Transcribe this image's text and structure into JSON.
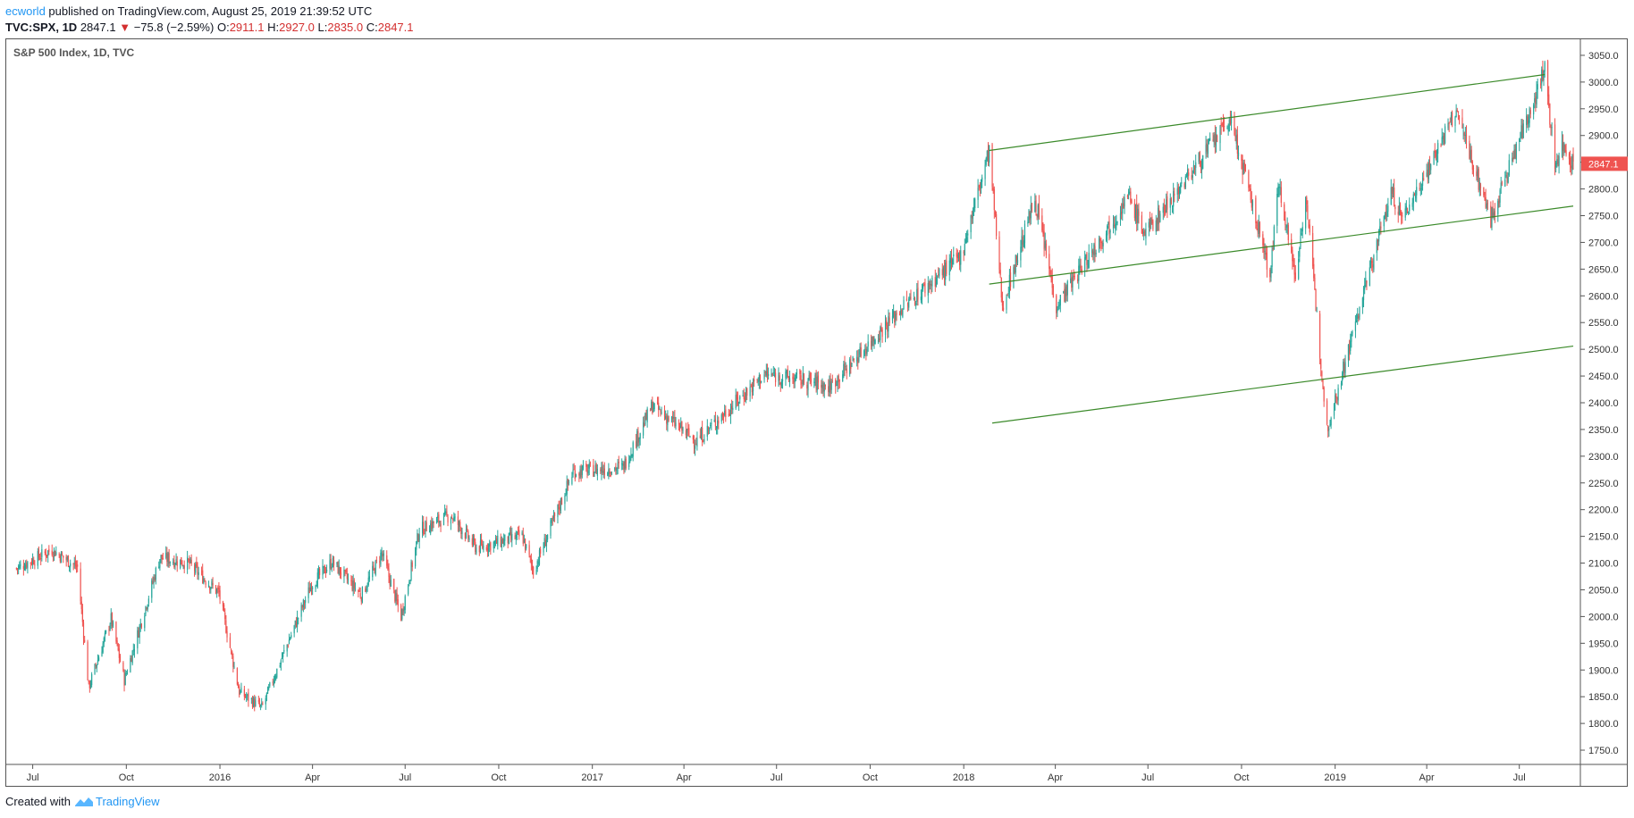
{
  "header": {
    "author": "ecworld",
    "published_text": " published on TradingView.com, August 25, 2019 21:39:52 UTC",
    "symbol": "TVC:SPX, 1D",
    "last": "2847.1",
    "change": "−75.8 (−2.59%)",
    "o_label": "O:",
    "o_value": "2911.1",
    "h_label": "H:",
    "h_value": "2927.0",
    "l_label": "L:",
    "l_value": "2835.0",
    "c_label": "C:",
    "c_value": "2847.1"
  },
  "footer": {
    "created_with": "Created with",
    "brand": "TradingView"
  },
  "colors": {
    "up": "#26a69a",
    "down": "#ef5350",
    "trend": "#3b8a2a",
    "price_tag": "#ef5350"
  },
  "chart_data": {
    "type": "candlestick",
    "title": "S&P 500 Index, 1D, TVC",
    "x_tick_labels": [
      "Jul",
      "Oct",
      "2016",
      "Apr",
      "Jul",
      "Oct",
      "2017",
      "Apr",
      "Jul",
      "Oct",
      "2018",
      "Apr",
      "Jul",
      "Oct",
      "2019",
      "Apr",
      "Jul"
    ],
    "y_ticks": [
      1750,
      1800,
      1850,
      1900,
      1950,
      2000,
      2050,
      2100,
      2150,
      2200,
      2250,
      2300,
      2350,
      2400,
      2450,
      2500,
      2550,
      2600,
      2650,
      2700,
      2750,
      2800,
      2850,
      2900,
      2950,
      3000,
      3050
    ],
    "ylim": [
      1730,
      3080
    ],
    "last_price_label": "2847.1",
    "keypoints": [
      {
        "date": "2015-06-15",
        "close": 2090
      },
      {
        "date": "2015-07-20",
        "close": 2125
      },
      {
        "date": "2015-08-14",
        "close": 2092
      },
      {
        "date": "2015-08-25",
        "close": 1867
      },
      {
        "date": "2015-09-16",
        "close": 1996
      },
      {
        "date": "2015-09-29",
        "close": 1881
      },
      {
        "date": "2015-11-03",
        "close": 2110
      },
      {
        "date": "2015-12-01",
        "close": 2100
      },
      {
        "date": "2015-12-31",
        "close": 2044
      },
      {
        "date": "2016-01-20",
        "close": 1859
      },
      {
        "date": "2016-02-11",
        "close": 1829
      },
      {
        "date": "2016-03-31",
        "close": 2060
      },
      {
        "date": "2016-04-20",
        "close": 2102
      },
      {
        "date": "2016-05-19",
        "close": 2040
      },
      {
        "date": "2016-06-08",
        "close": 2119
      },
      {
        "date": "2016-06-27",
        "close": 2000
      },
      {
        "date": "2016-07-15",
        "close": 2162
      },
      {
        "date": "2016-08-15",
        "close": 2190
      },
      {
        "date": "2016-09-09",
        "close": 2128
      },
      {
        "date": "2016-10-24",
        "close": 2151
      },
      {
        "date": "2016-11-04",
        "close": 2085
      },
      {
        "date": "2016-12-13",
        "close": 2271
      },
      {
        "date": "2017-01-31",
        "close": 2279
      },
      {
        "date": "2017-03-01",
        "close": 2395
      },
      {
        "date": "2017-04-13",
        "close": 2328
      },
      {
        "date": "2017-06-19",
        "close": 2453
      },
      {
        "date": "2017-08-10",
        "close": 2438
      },
      {
        "date": "2017-08-21",
        "close": 2428
      },
      {
        "date": "2017-10-31",
        "close": 2575
      },
      {
        "date": "2017-12-29",
        "close": 2674
      },
      {
        "date": "2018-01-26",
        "close": 2872
      },
      {
        "date": "2018-02-08",
        "close": 2581
      },
      {
        "date": "2018-03-12",
        "close": 2783
      },
      {
        "date": "2018-04-02",
        "close": 2582
      },
      {
        "date": "2018-06-12",
        "close": 2786
      },
      {
        "date": "2018-06-28",
        "close": 2716
      },
      {
        "date": "2018-09-20",
        "close": 2930
      },
      {
        "date": "2018-10-29",
        "close": 2641
      },
      {
        "date": "2018-11-07",
        "close": 2813
      },
      {
        "date": "2018-11-23",
        "close": 2633
      },
      {
        "date": "2018-12-03",
        "close": 2790
      },
      {
        "date": "2018-12-24",
        "close": 2351
      },
      {
        "date": "2019-02-25",
        "close": 2796
      },
      {
        "date": "2019-03-08",
        "close": 2743
      },
      {
        "date": "2019-04-30",
        "close": 2945
      },
      {
        "date": "2019-06-03",
        "close": 2744
      },
      {
        "date": "2019-07-26",
        "close": 3025
      },
      {
        "date": "2019-08-05",
        "close": 2845
      },
      {
        "date": "2019-08-12",
        "close": 2883
      },
      {
        "date": "2019-08-23",
        "close": 2847
      }
    ],
    "trendlines": [
      {
        "start": {
          "date": "2018-01-26",
          "price": 2872
        },
        "end": {
          "date": "2019-07-26",
          "price": 3014
        }
      },
      {
        "start": {
          "date": "2018-01-26",
          "price": 2622
        },
        "end": {
          "date": "2019-08-23",
          "price": 2768
        }
      },
      {
        "start": {
          "date": "2018-01-29",
          "price": 2362
        },
        "end": {
          "date": "2019-08-23",
          "price": 2506
        }
      }
    ]
  }
}
